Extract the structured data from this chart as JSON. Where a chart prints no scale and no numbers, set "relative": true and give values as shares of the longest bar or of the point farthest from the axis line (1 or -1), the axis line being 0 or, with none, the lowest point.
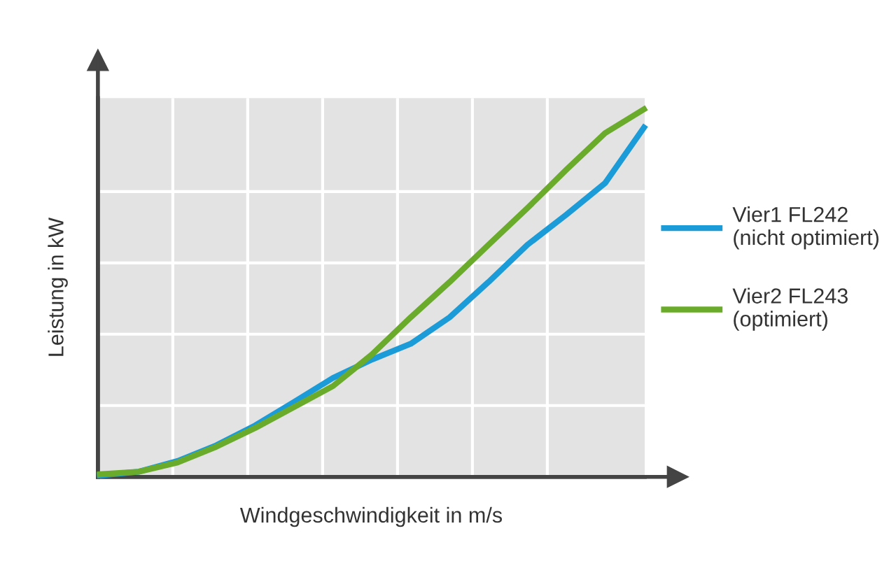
{
  "chart_data": {
    "type": "line",
    "relative": true,
    "xlabel": "Windgeschwindigkeit in m/s",
    "ylabel": "Leistung in kW",
    "categories": [
      null,
      null,
      null,
      null,
      null,
      null,
      null,
      null,
      null,
      null,
      null,
      null,
      null,
      null,
      null
    ],
    "series": [
      {
        "name": "Vier1 FL242\n(nicht optimiert)",
        "color": "#1b9bd7",
        "values": [
          0.004,
          0.014,
          0.043,
          0.086,
          0.14,
          0.204,
          0.269,
          0.319,
          0.362,
          0.434,
          0.53,
          0.631,
          0.713,
          0.799,
          0.95
        ]
      },
      {
        "name": "Vier2 FL243\n(optimiert)",
        "color": "#6aab2b",
        "values": [
          0.007,
          0.014,
          0.039,
          0.082,
          0.133,
          0.19,
          0.247,
          0.333,
          0.434,
          0.53,
          0.631,
          0.731,
          0.835,
          0.935,
          1.0
        ]
      }
    ],
    "grid": true,
    "legend": "right",
    "marker": "none",
    "line_style": "solid"
  }
}
